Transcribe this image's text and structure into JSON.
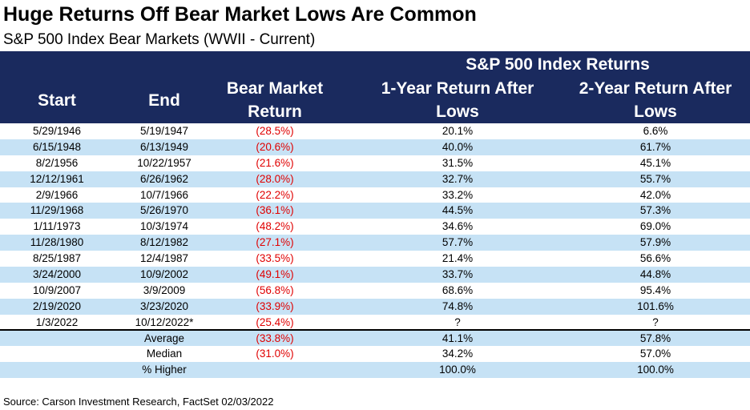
{
  "title": "Huge Returns Off Bear Market Lows Are Common",
  "subtitle": "S&P 500 Index Bear Markets (WWII - Current)",
  "header": {
    "group": "S&P 500 Index Returns",
    "start": "Start",
    "end": "End",
    "bear_line1": "Bear Market",
    "bear_line2": "Return",
    "one_year_line1": "1-Year Return After",
    "one_year_line2": "Lows",
    "two_year_line1": "2-Year Return After",
    "two_year_line2": "Lows"
  },
  "rows": [
    {
      "start": "5/29/1946",
      "end": "5/19/1947",
      "bear": "(28.5%)",
      "one": "20.1%",
      "two": "6.6%"
    },
    {
      "start": "6/15/1948",
      "end": "6/13/1949",
      "bear": "(20.6%)",
      "one": "40.0%",
      "two": "61.7%"
    },
    {
      "start": "8/2/1956",
      "end": "10/22/1957",
      "bear": "(21.6%)",
      "one": "31.5%",
      "two": "45.1%"
    },
    {
      "start": "12/12/1961",
      "end": "6/26/1962",
      "bear": "(28.0%)",
      "one": "32.7%",
      "two": "55.7%"
    },
    {
      "start": "2/9/1966",
      "end": "10/7/1966",
      "bear": "(22.2%)",
      "one": "33.2%",
      "two": "42.0%"
    },
    {
      "start": "11/29/1968",
      "end": "5/26/1970",
      "bear": "(36.1%)",
      "one": "44.5%",
      "two": "57.3%"
    },
    {
      "start": "1/11/1973",
      "end": "10/3/1974",
      "bear": "(48.2%)",
      "one": "34.6%",
      "two": "69.0%"
    },
    {
      "start": "11/28/1980",
      "end": "8/12/1982",
      "bear": "(27.1%)",
      "one": "57.7%",
      "two": "57.9%"
    },
    {
      "start": "8/25/1987",
      "end": "12/4/1987",
      "bear": "(33.5%)",
      "one": "21.4%",
      "two": "56.6%"
    },
    {
      "start": "3/24/2000",
      "end": "10/9/2002",
      "bear": "(49.1%)",
      "one": "33.7%",
      "two": "44.8%"
    },
    {
      "start": "10/9/2007",
      "end": "3/9/2009",
      "bear": "(56.8%)",
      "one": "68.6%",
      "two": "95.4%"
    },
    {
      "start": "2/19/2020",
      "end": "3/23/2020",
      "bear": "(33.9%)",
      "one": "74.8%",
      "two": "101.6%"
    },
    {
      "start": "1/3/2022",
      "end": "10/12/2022*",
      "bear": "(25.4%)",
      "one": "?",
      "two": "?"
    }
  ],
  "summary": [
    {
      "label": "Average",
      "bear": "(33.8%)",
      "one": "41.1%",
      "two": "57.8%"
    },
    {
      "label": "Median",
      "bear": "(31.0%)",
      "one": "34.2%",
      "two": "57.0%"
    },
    {
      "label": "% Higher",
      "bear": "",
      "one": "100.0%",
      "two": "100.0%"
    }
  ],
  "source": "Source: Carson Investment Research, FactSet 02/03/2022",
  "colors": {
    "header_bg": "#1a2a5e",
    "alt_row": "#c6e2f5",
    "negative": "#e00000"
  }
}
